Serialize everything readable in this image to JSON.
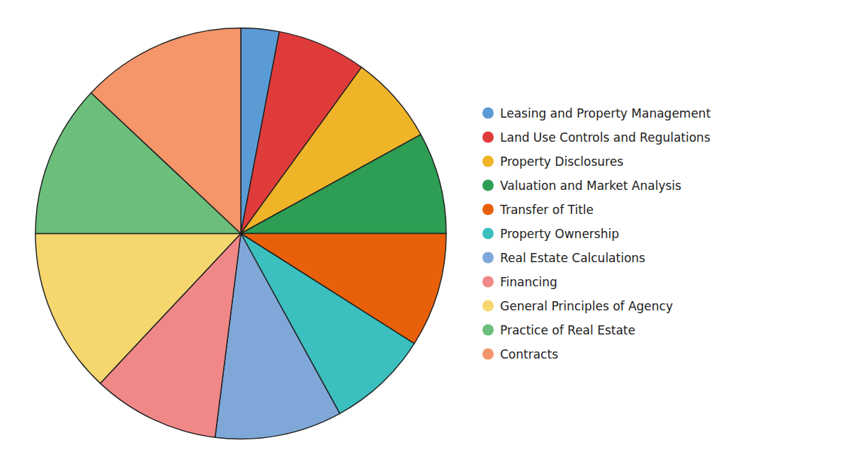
{
  "chart_data": {
    "type": "pie",
    "categories": [
      "Leasing and Property Management",
      "Land Use Controls and Regulations",
      "Property Disclosures",
      "Valuation and Market Analysis",
      "Transfer of Title",
      "Property Ownership",
      "Real Estate Calculations",
      "Financing",
      "General Principles of Agency",
      "Practice of Real Estate",
      "Contracts"
    ],
    "values": [
      3,
      7,
      7,
      8,
      9,
      8,
      10,
      10,
      13,
      12,
      13
    ],
    "colors": [
      "#5B9BD5",
      "#E03B3B",
      "#F0B429",
      "#2E9E54",
      "#E8610A",
      "#3BBFBF",
      "#7FA8D9",
      "#F08888",
      "#F5D76E",
      "#6BBF7A",
      "#F4956A"
    ],
    "legend": "right"
  }
}
